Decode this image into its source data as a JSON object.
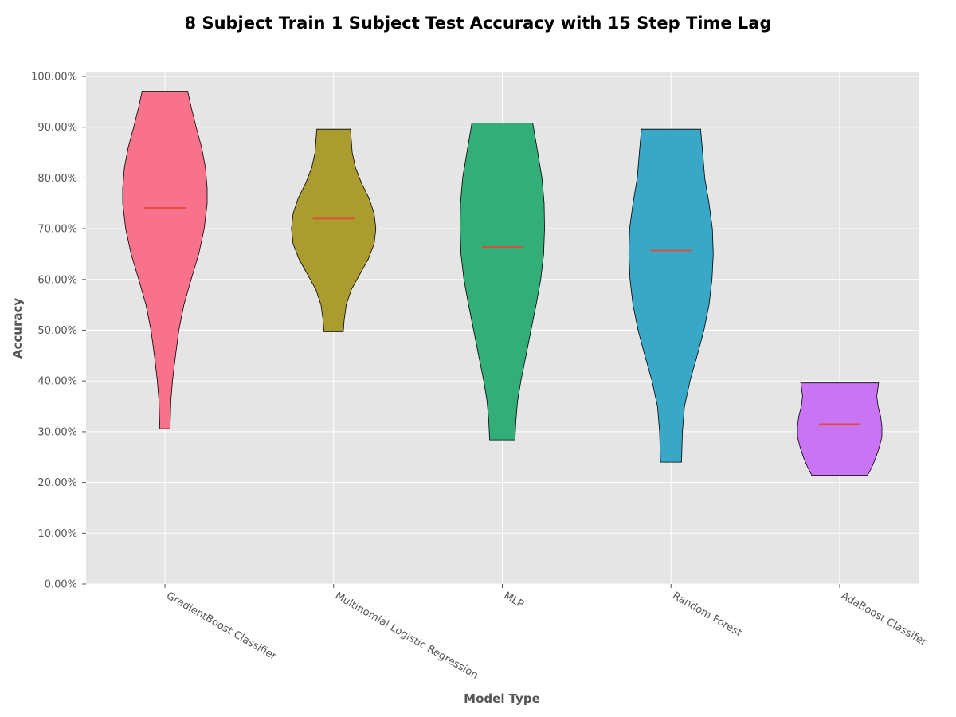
{
  "chart_data": {
    "type": "violin",
    "title": "8 Subject Train 1 Subject Test Accuracy with 15 Step Time Lag",
    "xlabel": "Model Type",
    "ylabel": "Accuracy",
    "ylim": [
      0,
      1.0
    ],
    "yticks": [
      0,
      0.1,
      0.2,
      0.3,
      0.4,
      0.5,
      0.6,
      0.7,
      0.8,
      0.9,
      1.0
    ],
    "ytick_labels": [
      "0.00%",
      "10.00%",
      "20.00%",
      "30.00%",
      "40.00%",
      "50.00%",
      "60.00%",
      "70.00%",
      "80.00%",
      "90.00%",
      "100.00%"
    ],
    "categories": [
      "GradientBoost Classifier",
      "Multinomial Logistic Regression",
      "MLP",
      "Random Forest",
      "AdaBoost Classifer"
    ],
    "grid": true,
    "series": [
      {
        "category": "GradientBoost Classifier",
        "color": "#f7728a",
        "min": 0.306,
        "max": 0.971,
        "mean": 0.741,
        "density_profile": [
          [
            0.306,
            0.12
          ],
          [
            0.33,
            0.13
          ],
          [
            0.36,
            0.14
          ],
          [
            0.4,
            0.18
          ],
          [
            0.45,
            0.25
          ],
          [
            0.5,
            0.33
          ],
          [
            0.55,
            0.45
          ],
          [
            0.6,
            0.62
          ],
          [
            0.65,
            0.8
          ],
          [
            0.7,
            0.93
          ],
          [
            0.75,
            1.0
          ],
          [
            0.78,
            1.0
          ],
          [
            0.82,
            0.96
          ],
          [
            0.86,
            0.87
          ],
          [
            0.9,
            0.74
          ],
          [
            0.94,
            0.62
          ],
          [
            0.971,
            0.54
          ]
        ]
      },
      {
        "category": "Multinomial Logistic Regression",
        "color": "#ab9c30",
        "min": 0.497,
        "max": 0.896,
        "mean": 0.72,
        "density_profile": [
          [
            0.497,
            0.23
          ],
          [
            0.52,
            0.25
          ],
          [
            0.55,
            0.3
          ],
          [
            0.58,
            0.42
          ],
          [
            0.61,
            0.62
          ],
          [
            0.64,
            0.82
          ],
          [
            0.67,
            0.96
          ],
          [
            0.7,
            1.0
          ],
          [
            0.73,
            0.96
          ],
          [
            0.76,
            0.84
          ],
          [
            0.79,
            0.66
          ],
          [
            0.82,
            0.52
          ],
          [
            0.85,
            0.44
          ],
          [
            0.896,
            0.4
          ]
        ]
      },
      {
        "category": "MLP",
        "color": "#33ae78",
        "min": 0.284,
        "max": 0.908,
        "mean": 0.664,
        "density_profile": [
          [
            0.284,
            0.3
          ],
          [
            0.32,
            0.32
          ],
          [
            0.36,
            0.36
          ],
          [
            0.4,
            0.44
          ],
          [
            0.45,
            0.56
          ],
          [
            0.5,
            0.68
          ],
          [
            0.55,
            0.8
          ],
          [
            0.6,
            0.91
          ],
          [
            0.65,
            0.98
          ],
          [
            0.7,
            1.0
          ],
          [
            0.75,
            0.99
          ],
          [
            0.8,
            0.94
          ],
          [
            0.85,
            0.84
          ],
          [
            0.908,
            0.72
          ]
        ]
      },
      {
        "category": "Random Forest",
        "color": "#39a7c6",
        "min": 0.24,
        "max": 0.896,
        "mean": 0.657,
        "density_profile": [
          [
            0.24,
            0.25
          ],
          [
            0.27,
            0.26
          ],
          [
            0.3,
            0.27
          ],
          [
            0.35,
            0.32
          ],
          [
            0.4,
            0.45
          ],
          [
            0.45,
            0.62
          ],
          [
            0.5,
            0.78
          ],
          [
            0.55,
            0.9
          ],
          [
            0.6,
            0.97
          ],
          [
            0.65,
            1.0
          ],
          [
            0.7,
            0.98
          ],
          [
            0.75,
            0.9
          ],
          [
            0.8,
            0.8
          ],
          [
            0.85,
            0.75
          ],
          [
            0.896,
            0.7
          ]
        ]
      },
      {
        "category": "AdaBoost Classifer",
        "color": "#c874f3",
        "min": 0.214,
        "max": 0.396,
        "mean": 0.315,
        "density_profile": [
          [
            0.214,
            0.66
          ],
          [
            0.23,
            0.76
          ],
          [
            0.25,
            0.86
          ],
          [
            0.27,
            0.94
          ],
          [
            0.29,
            1.0
          ],
          [
            0.31,
            1.0
          ],
          [
            0.33,
            0.97
          ],
          [
            0.35,
            0.91
          ],
          [
            0.37,
            0.88
          ],
          [
            0.396,
            0.92
          ]
        ]
      }
    ]
  }
}
